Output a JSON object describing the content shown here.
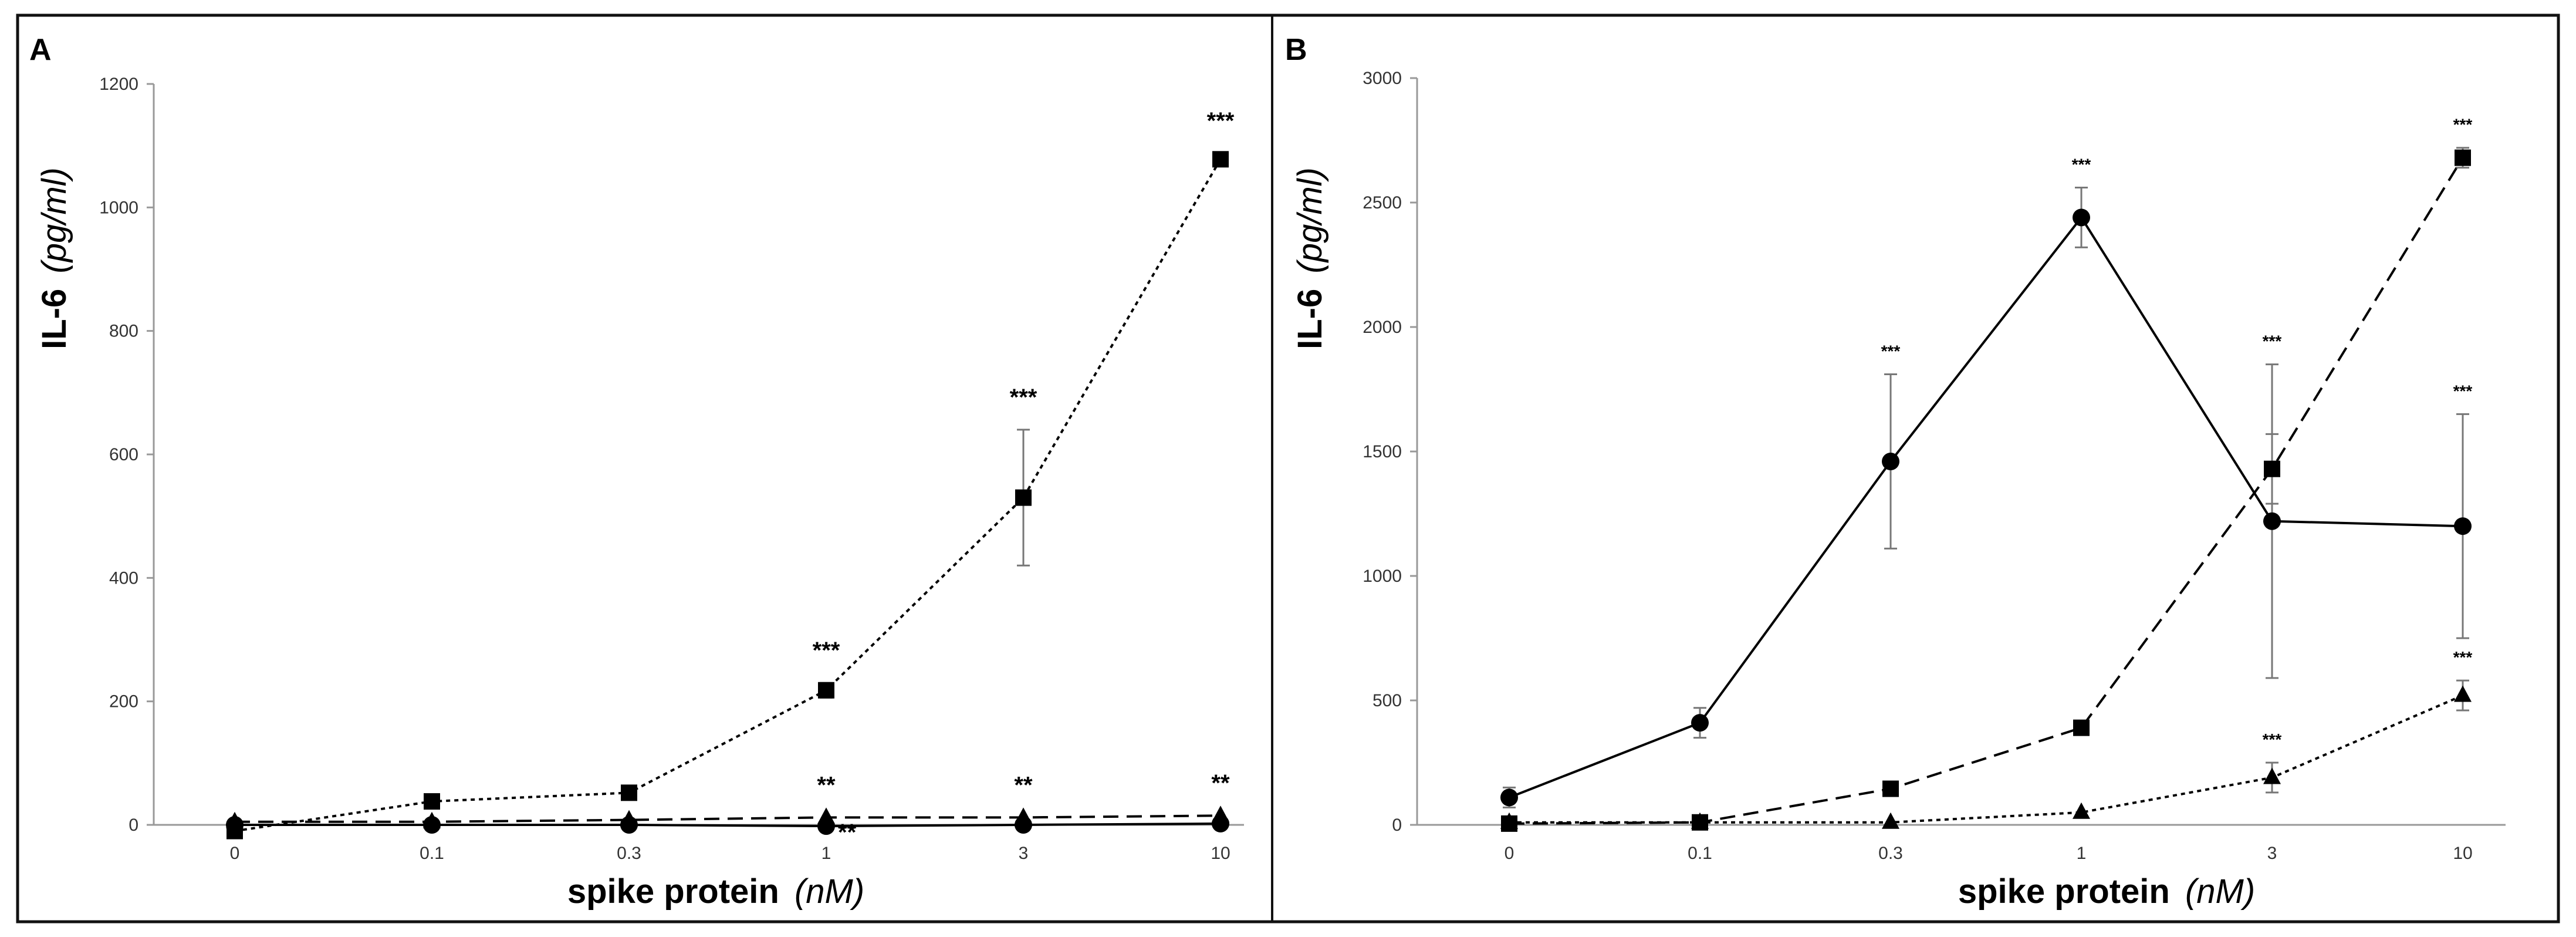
{
  "chart_data": [
    {
      "panel": "A",
      "type": "line",
      "xlabel_main": "spike protein",
      "xlabel_unit": "(nM)",
      "ylabel_main": "IL-6",
      "ylabel_unit": "(pg/ml)",
      "categories": [
        "0",
        "0.1",
        "0.3",
        "1",
        "3",
        "10"
      ],
      "ylim": [
        0,
        1200
      ],
      "yticks": [
        0,
        200,
        400,
        600,
        800,
        1000,
        1200
      ],
      "series": [
        {
          "name": "square",
          "marker": "square",
          "dash": "dotted",
          "values": [
            -10,
            38,
            52,
            218,
            530,
            1078
          ],
          "errors": [
            0,
            5,
            5,
            12,
            110,
            10
          ],
          "sig": [
            "",
            "",
            "",
            "***",
            "***",
            "***"
          ]
        },
        {
          "name": "triangle",
          "marker": "triangle",
          "dash": "dashed",
          "values": [
            5,
            5,
            8,
            12,
            12,
            15
          ],
          "errors": [
            0,
            0,
            0,
            0,
            0,
            0
          ],
          "sig": [
            "",
            "",
            "",
            "**",
            "**",
            "**"
          ]
        },
        {
          "name": "circle",
          "marker": "circle",
          "dash": "solid",
          "values": [
            0,
            0,
            0,
            -2,
            0,
            2
          ],
          "errors": [
            0,
            0,
            0,
            0,
            0,
            0
          ],
          "sig": [
            "",
            "",
            "",
            "**",
            "",
            ""
          ]
        }
      ]
    },
    {
      "panel": "B",
      "type": "line",
      "xlabel_main": "spike protein",
      "xlabel_unit": "(nM)",
      "ylabel_main": "IL-6",
      "ylabel_unit": "(pg/ml)",
      "categories": [
        "0",
        "0.1",
        "0.3",
        "1",
        "3",
        "10"
      ],
      "ylim": [
        0,
        3000
      ],
      "yticks": [
        0,
        500,
        1000,
        1500,
        2000,
        2500,
        3000
      ],
      "series": [
        {
          "name": "circle",
          "marker": "circle",
          "dash": "solid",
          "values": [
            110,
            410,
            1460,
            2440,
            1220,
            1200
          ],
          "errors": [
            40,
            60,
            350,
            120,
            630,
            450
          ],
          "sig": [
            "",
            "",
            "***",
            "***",
            "***",
            "***"
          ]
        },
        {
          "name": "square",
          "marker": "square",
          "dash": "dashed",
          "values": [
            5,
            10,
            145,
            390,
            1430,
            2680
          ],
          "errors": [
            0,
            0,
            0,
            0,
            140,
            40
          ],
          "sig": [
            "",
            "",
            "",
            "",
            "",
            "***"
          ]
        },
        {
          "name": "triangle",
          "marker": "triangle",
          "dash": "dotted",
          "values": [
            10,
            10,
            10,
            50,
            190,
            520
          ],
          "errors": [
            0,
            0,
            0,
            0,
            60,
            60
          ],
          "sig": [
            "",
            "",
            "",
            "",
            "***",
            "***"
          ]
        }
      ]
    }
  ]
}
